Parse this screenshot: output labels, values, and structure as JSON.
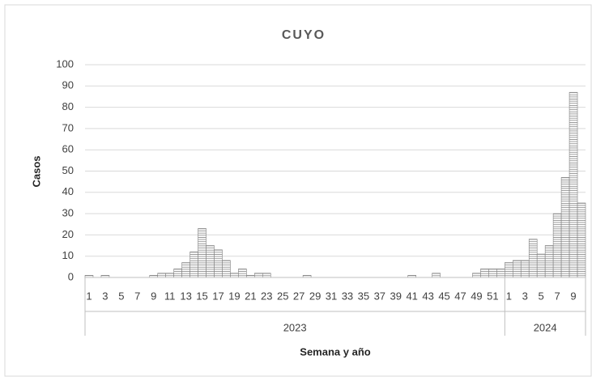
{
  "chart_data": {
    "type": "bar",
    "title": "CUYO",
    "y_label": "Casos",
    "x_label": "Semana y año",
    "color": "#7f7f7f",
    "ylim": [
      0,
      100
    ],
    "yticks": [
      0,
      10,
      20,
      30,
      40,
      50,
      60,
      70,
      80,
      90,
      100
    ],
    "grid": true,
    "groups": [
      {
        "name": "2023",
        "categories": [
          1,
          null,
          3,
          null,
          5,
          null,
          7,
          null,
          9,
          null,
          11,
          null,
          13,
          null,
          15,
          null,
          17,
          null,
          19,
          null,
          21,
          null,
          23,
          null,
          25,
          null,
          27,
          null,
          29,
          null,
          31,
          null,
          33,
          null,
          35,
          null,
          37,
          null,
          39,
          null,
          41,
          null,
          43,
          null,
          45,
          null,
          47,
          null,
          49,
          null,
          51,
          null
        ],
        "values": [
          1,
          0,
          1,
          0,
          0,
          0,
          0,
          0,
          1,
          2,
          2,
          4,
          7,
          12,
          23,
          15,
          13,
          8,
          2,
          4,
          1,
          2,
          2,
          0,
          0,
          0,
          0,
          1,
          0,
          0,
          0,
          0,
          0,
          0,
          0,
          0,
          0,
          0,
          0,
          0,
          1,
          0,
          0,
          2,
          0,
          0,
          0,
          0,
          2,
          4,
          4,
          4
        ]
      },
      {
        "name": "2024",
        "categories": [
          1,
          null,
          3,
          null,
          5,
          null,
          7,
          null,
          9,
          null
        ],
        "values": [
          7,
          8,
          8,
          18,
          11,
          15,
          30,
          47,
          87,
          35
        ]
      }
    ]
  }
}
